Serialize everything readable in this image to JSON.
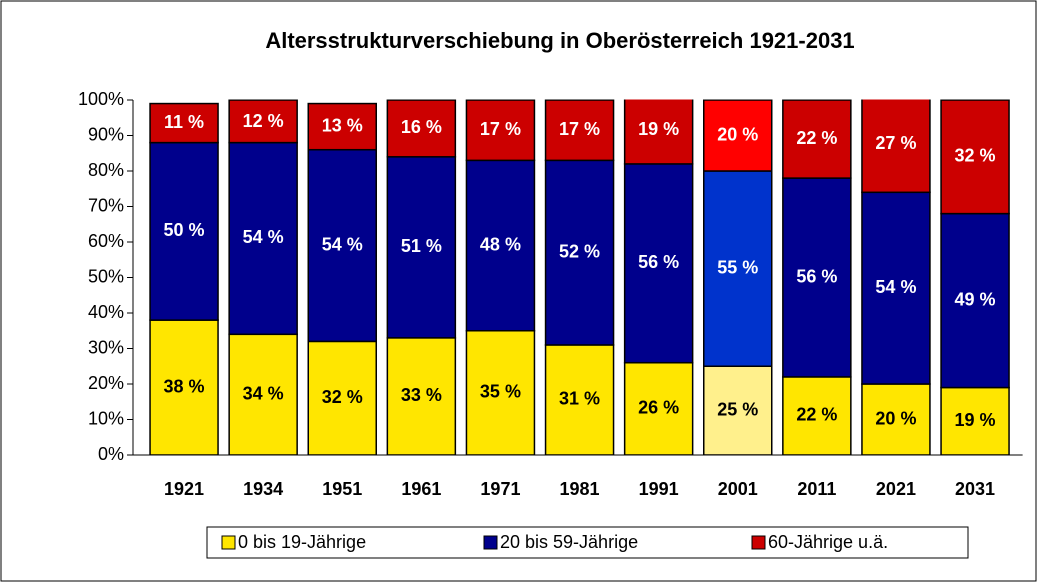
{
  "chart_data": {
    "type": "stacked_bar",
    "title": "Altersstrukturverschiebung in Oberösterreich 1921-2031",
    "categories": [
      "1921",
      "1934",
      "1951",
      "1961",
      "1971",
      "1981",
      "1991",
      "2001",
      "2011",
      "2021",
      "2031"
    ],
    "series": [
      {
        "name": "0 bis 19-Jährige",
        "color": "#ffe600",
        "colors": [
          "#ffe600",
          "#ffe600",
          "#ffe600",
          "#ffe600",
          "#ffe600",
          "#ffe600",
          "#ffe600",
          "#fff08c",
          "#ffe600",
          "#ffe600",
          "#ffe600"
        ],
        "values": [
          38,
          34,
          32,
          33,
          35,
          31,
          26,
          25,
          22,
          20,
          19
        ],
        "value_labels": [
          "38 %",
          "34 %",
          "32 %",
          "33 %",
          "35 %",
          "31 %",
          "26 %",
          "25 %",
          "22 %",
          "20 %",
          "19 %"
        ]
      },
      {
        "name": "20 bis 59-Jährige",
        "color": "#00008c",
        "colors": [
          "#00008c",
          "#00008c",
          "#00008c",
          "#00008c",
          "#00008c",
          "#00008c",
          "#00008c",
          "#0033cc",
          "#00008c",
          "#00008c",
          "#00008c"
        ],
        "values": [
          50,
          54,
          54,
          51,
          48,
          52,
          56,
          55,
          56,
          54,
          49
        ],
        "value_labels": [
          "50 %",
          "54 %",
          "54 %",
          "51 %",
          "48 %",
          "52 %",
          "56 %",
          "55 %",
          "56 %",
          "54 %",
          "49 %"
        ]
      },
      {
        "name": "60-Jährige u.ä.",
        "color": "#cc0000",
        "colors": [
          "#cc0000",
          "#cc0000",
          "#cc0000",
          "#cc0000",
          "#cc0000",
          "#cc0000",
          "#cc0000",
          "#ff0000",
          "#cc0000",
          "#cc0000",
          "#cc0000"
        ],
        "values": [
          11,
          12,
          13,
          16,
          17,
          17,
          19,
          20,
          22,
          27,
          32
        ],
        "value_labels": [
          "11 %",
          "12 %",
          "13 %",
          "16 %",
          "17 %",
          "17 %",
          "19 %",
          "20 %",
          "22 %",
          "27 %",
          "32 %"
        ]
      }
    ],
    "ylim": [
      0,
      100
    ],
    "yticks": [
      {
        "value": 0,
        "label": "0%"
      },
      {
        "value": 10,
        "label": "10%"
      },
      {
        "value": 20,
        "label": "20%"
      },
      {
        "value": 30,
        "label": "30%"
      },
      {
        "value": 40,
        "label": "40%"
      },
      {
        "value": 50,
        "label": "50%"
      },
      {
        "value": 60,
        "label": "60%"
      },
      {
        "value": 70,
        "label": "70%"
      },
      {
        "value": 80,
        "label": "80%"
      },
      {
        "value": 90,
        "label": "90%"
      },
      {
        "value": 100,
        "label": "100%"
      }
    ],
    "legend": "bottom"
  }
}
